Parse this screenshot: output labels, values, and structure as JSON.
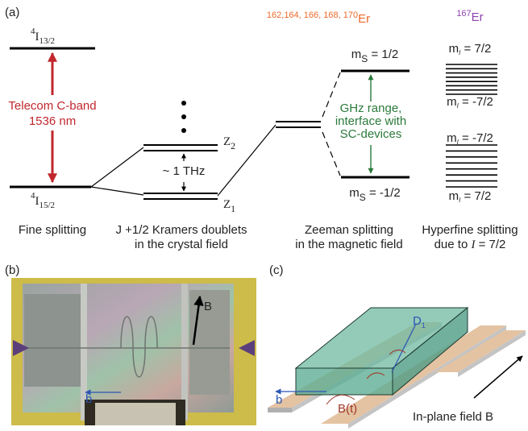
{
  "panel_a": {
    "label": "(a)",
    "fine": {
      "upper": {
        "sup": "4",
        "main": "I",
        "sub": "13/2"
      },
      "lower": {
        "sup": "4",
        "main": "I",
        "sub": "15/2"
      },
      "transition": [
        "Telecom C-band",
        "1536 nm"
      ],
      "caption": "Fine splitting"
    },
    "doublets": {
      "z2": {
        "main": "Z",
        "sub": "2"
      },
      "z1": {
        "main": "Z",
        "sub": "1"
      },
      "gap": "~ 1 THz",
      "caption": [
        "J +1/2 Kramers doublets",
        "in the crystal field"
      ]
    },
    "zeeman": {
      "isotopes": {
        "sup": "162,164, 166, 168, 170",
        "main": "Er"
      },
      "upper": {
        "main": "m",
        "sub": "S",
        "rest": " = 1/2"
      },
      "lower": {
        "main": "m",
        "sub": "S",
        "rest": " = -1/2"
      },
      "note": [
        "GHz range,",
        "interface with",
        "SC-devices"
      ],
      "caption": [
        "Zeeman splitting",
        "in the magnetic field"
      ]
    },
    "hyperfine": {
      "isotope": {
        "sup": "167",
        "main": "Er"
      },
      "labels": [
        {
          "main": "m",
          "sub": "I",
          "rest": " = 7/2"
        },
        {
          "main": "m",
          "sub": "I",
          "rest": " = -7/2"
        },
        {
          "main": "m",
          "sub": "I",
          "rest": " = -7/2"
        },
        {
          "main": "m",
          "sub": "I",
          "rest": " = 7/2"
        }
      ],
      "caption": [
        "Hyperfine splitting",
        {
          "pre": "due to ",
          "italic": "I",
          "post": " = 7/2"
        }
      ]
    }
  },
  "panel_b": {
    "label": "(b)",
    "field": "B",
    "axis": "b"
  },
  "panel_c": {
    "label": "(c)",
    "dipole": {
      "main": "D",
      "sub": "1"
    },
    "axis": "b",
    "drive": "B(t)",
    "field": "In-plane field B"
  }
}
